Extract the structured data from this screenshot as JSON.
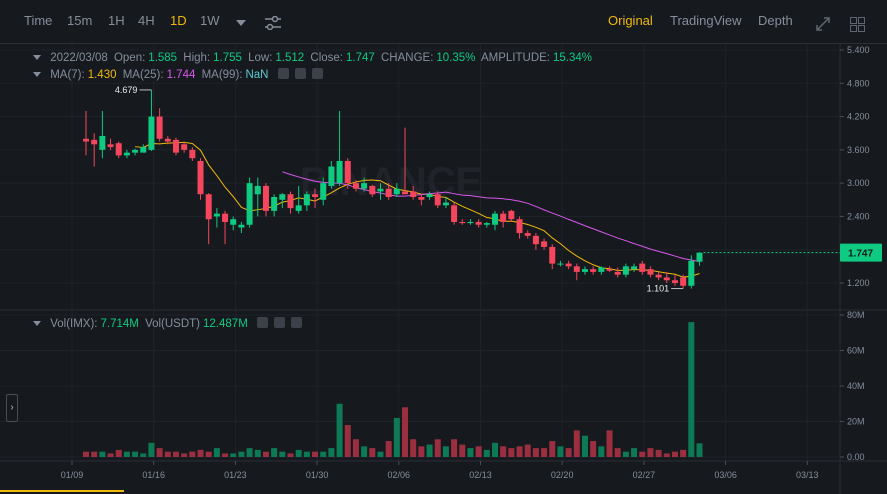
{
  "toolbar": {
    "intervals": [
      "Time",
      "15m",
      "1H",
      "4H",
      "1D",
      "1W"
    ],
    "active_interval": "1D",
    "views": [
      "Original",
      "TradingView",
      "Depth"
    ],
    "active_view": "Original",
    "dropdown_icon": "caret-down-icon",
    "settings_icon": "sliders-icon",
    "expand_icon": "expand-icon",
    "grid_icon": "grid-icon"
  },
  "legend": {
    "date": "2022/03/08",
    "open_label": "Open:",
    "open": "1.585",
    "high_label": "High:",
    "high": "1.755",
    "low_label": "Low:",
    "low": "1.512",
    "close_label": "Close:",
    "close": "1.747",
    "change_label": "CHANGE:",
    "change": "10.35%",
    "amplitude_label": "AMPLITUDE:",
    "amplitude": "15.34%",
    "ma7_label": "MA(7):",
    "ma7": "1.430",
    "ma25_label": "MA(25):",
    "ma25": "1.744",
    "ma99_label": "MA(99):",
    "ma99": "NaN",
    "vol_label": "Vol(IMX):",
    "vol": "7.714M",
    "volusdt_label": "Vol(USDT)",
    "volusdt": "12.487M"
  },
  "colors": {
    "up": "#0ecb81",
    "down": "#f6465d",
    "ma7": "#f0b90b",
    "ma25": "#d957ef",
    "accent": "#f0b90b",
    "background": "#161a1e"
  },
  "chart_data": {
    "type": "candlestick",
    "x_tick_labels": [
      "01/09",
      "01/16",
      "01/23",
      "01/30",
      "02/06",
      "02/13",
      "02/20",
      "02/27",
      "03/06",
      "03/13"
    ],
    "price_axis": {
      "ticks": [
        "5.400",
        "4.800",
        "4.200",
        "3.600",
        "3.000",
        "2.400",
        "1.800",
        "1.200"
      ],
      "range": [
        0.9,
        5.6
      ]
    },
    "volume_axis": {
      "ticks": [
        "80M",
        "60M",
        "40M",
        "20M",
        "0.00"
      ],
      "range": [
        0,
        80
      ]
    },
    "last_price": "1.747",
    "high_marker": "4.679",
    "low_marker": "1.101",
    "candles": [
      {
        "o": 3.8,
        "h": 4.3,
        "l": 3.5,
        "c": 3.75,
        "v": 3
      },
      {
        "o": 3.78,
        "h": 3.9,
        "l": 3.3,
        "c": 3.7,
        "v": 3
      },
      {
        "o": 3.6,
        "h": 4.3,
        "l": 3.45,
        "c": 3.85,
        "v": 3
      },
      {
        "o": 3.7,
        "h": 3.8,
        "l": 3.6,
        "c": 3.65,
        "v": 2
      },
      {
        "o": 3.72,
        "h": 3.75,
        "l": 3.45,
        "c": 3.5,
        "v": 4
      },
      {
        "o": 3.5,
        "h": 3.6,
        "l": 3.45,
        "c": 3.55,
        "v": 3
      },
      {
        "o": 3.55,
        "h": 3.62,
        "l": 3.5,
        "c": 3.6,
        "v": 3
      },
      {
        "o": 3.55,
        "h": 3.7,
        "l": 3.55,
        "c": 3.65,
        "v": 2
      },
      {
        "o": 3.6,
        "h": 4.68,
        "l": 3.58,
        "c": 4.2,
        "v": 8
      },
      {
        "o": 4.2,
        "h": 4.35,
        "l": 3.75,
        "c": 3.8,
        "v": 5
      },
      {
        "o": 3.8,
        "h": 3.85,
        "l": 3.7,
        "c": 3.75,
        "v": 3
      },
      {
        "o": 3.78,
        "h": 3.82,
        "l": 3.5,
        "c": 3.55,
        "v": 3
      },
      {
        "o": 3.7,
        "h": 3.75,
        "l": 3.55,
        "c": 3.6,
        "v": 2
      },
      {
        "o": 3.6,
        "h": 3.65,
        "l": 3.4,
        "c": 3.45,
        "v": 3
      },
      {
        "o": 3.4,
        "h": 3.45,
        "l": 2.7,
        "c": 2.8,
        "v": 4
      },
      {
        "o": 2.8,
        "h": 2.82,
        "l": 1.9,
        "c": 2.35,
        "v": 3
      },
      {
        "o": 2.4,
        "h": 2.55,
        "l": 2.2,
        "c": 2.45,
        "v": 5
      },
      {
        "o": 2.45,
        "h": 2.5,
        "l": 1.9,
        "c": 2.3,
        "v": 2
      },
      {
        "o": 2.25,
        "h": 2.4,
        "l": 2.15,
        "c": 2.35,
        "v": 2
      },
      {
        "o": 2.2,
        "h": 2.3,
        "l": 2.1,
        "c": 2.25,
        "v": 3
      },
      {
        "o": 2.25,
        "h": 3.1,
        "l": 2.2,
        "c": 3.0,
        "v": 5
      },
      {
        "o": 2.8,
        "h": 3.1,
        "l": 2.4,
        "c": 2.95,
        "v": 4
      },
      {
        "o": 2.95,
        "h": 3.0,
        "l": 2.4,
        "c": 2.5,
        "v": 3
      },
      {
        "o": 2.5,
        "h": 2.8,
        "l": 2.4,
        "c": 2.75,
        "v": 5
      },
      {
        "o": 2.7,
        "h": 2.82,
        "l": 2.55,
        "c": 2.8,
        "v": 3
      },
      {
        "o": 2.8,
        "h": 2.85,
        "l": 2.45,
        "c": 2.55,
        "v": 2
      },
      {
        "o": 2.5,
        "h": 2.95,
        "l": 2.45,
        "c": 2.6,
        "v": 4
      },
      {
        "o": 2.6,
        "h": 2.85,
        "l": 2.5,
        "c": 2.8,
        "v": 3
      },
      {
        "o": 2.8,
        "h": 2.9,
        "l": 2.55,
        "c": 2.75,
        "v": 3
      },
      {
        "o": 2.7,
        "h": 3.1,
        "l": 2.6,
        "c": 3.0,
        "v": 3
      },
      {
        "o": 2.95,
        "h": 3.4,
        "l": 2.9,
        "c": 3.3,
        "v": 5
      },
      {
        "o": 3.0,
        "h": 4.3,
        "l": 2.95,
        "c": 3.4,
        "v": 30
      },
      {
        "o": 3.4,
        "h": 3.45,
        "l": 2.9,
        "c": 3.0,
        "v": 18
      },
      {
        "o": 3.0,
        "h": 3.05,
        "l": 2.85,
        "c": 2.9,
        "v": 10
      },
      {
        "o": 2.9,
        "h": 3.1,
        "l": 2.85,
        "c": 3.0,
        "v": 6
      },
      {
        "o": 2.95,
        "h": 2.97,
        "l": 2.75,
        "c": 2.8,
        "v": 5
      },
      {
        "o": 2.85,
        "h": 3.0,
        "l": 2.7,
        "c": 2.9,
        "v": 3
      },
      {
        "o": 2.9,
        "h": 3.0,
        "l": 2.7,
        "c": 2.75,
        "v": 9
      },
      {
        "o": 2.8,
        "h": 3.0,
        "l": 2.75,
        "c": 2.9,
        "v": 22
      },
      {
        "o": 2.85,
        "h": 4.0,
        "l": 2.8,
        "c": 2.8,
        "v": 28
      },
      {
        "o": 2.85,
        "h": 2.95,
        "l": 2.7,
        "c": 2.75,
        "v": 10
      },
      {
        "o": 2.75,
        "h": 2.8,
        "l": 2.6,
        "c": 2.7,
        "v": 6
      },
      {
        "o": 2.75,
        "h": 2.85,
        "l": 2.7,
        "c": 2.8,
        "v": 7
      },
      {
        "o": 2.8,
        "h": 2.85,
        "l": 2.55,
        "c": 2.6,
        "v": 10
      },
      {
        "o": 2.6,
        "h": 2.75,
        "l": 2.55,
        "c": 2.65,
        "v": 6
      },
      {
        "o": 2.6,
        "h": 2.65,
        "l": 2.25,
        "c": 2.3,
        "v": 10
      },
      {
        "o": 2.3,
        "h": 2.35,
        "l": 2.25,
        "c": 2.28,
        "v": 7
      },
      {
        "o": 2.28,
        "h": 2.35,
        "l": 2.25,
        "c": 2.3,
        "v": 5
      },
      {
        "o": 2.3,
        "h": 2.35,
        "l": 2.2,
        "c": 2.25,
        "v": 6
      },
      {
        "o": 2.25,
        "h": 2.3,
        "l": 2.2,
        "c": 2.28,
        "v": 4
      },
      {
        "o": 2.25,
        "h": 2.5,
        "l": 2.15,
        "c": 2.45,
        "v": 8
      },
      {
        "o": 2.45,
        "h": 2.5,
        "l": 2.2,
        "c": 2.3,
        "v": 6
      },
      {
        "o": 2.5,
        "h": 2.52,
        "l": 2.3,
        "c": 2.35,
        "v": 5
      },
      {
        "o": 2.35,
        "h": 2.4,
        "l": 2.0,
        "c": 2.1,
        "v": 6
      },
      {
        "o": 2.1,
        "h": 2.15,
        "l": 2.0,
        "c": 2.05,
        "v": 7
      },
      {
        "o": 2.05,
        "h": 2.1,
        "l": 1.8,
        "c": 1.9,
        "v": 5
      },
      {
        "o": 1.95,
        "h": 2.0,
        "l": 1.8,
        "c": 1.85,
        "v": 5
      },
      {
        "o": 1.85,
        "h": 1.9,
        "l": 1.45,
        "c": 1.55,
        "v": 9
      },
      {
        "o": 1.55,
        "h": 1.6,
        "l": 1.5,
        "c": 1.55,
        "v": 6
      },
      {
        "o": 1.55,
        "h": 1.6,
        "l": 1.45,
        "c": 1.5,
        "v": 5
      },
      {
        "o": 1.5,
        "h": 1.55,
        "l": 1.25,
        "c": 1.4,
        "v": 15
      },
      {
        "o": 1.4,
        "h": 1.5,
        "l": 1.35,
        "c": 1.45,
        "v": 12
      },
      {
        "o": 1.45,
        "h": 1.5,
        "l": 1.35,
        "c": 1.4,
        "v": 9
      },
      {
        "o": 1.4,
        "h": 1.5,
        "l": 1.35,
        "c": 1.48,
        "v": 6
      },
      {
        "o": 1.45,
        "h": 1.5,
        "l": 1.4,
        "c": 1.42,
        "v": 15
      },
      {
        "o": 1.4,
        "h": 1.48,
        "l": 1.3,
        "c": 1.35,
        "v": 5
      },
      {
        "o": 1.35,
        "h": 1.55,
        "l": 1.3,
        "c": 1.5,
        "v": 3
      },
      {
        "o": 1.45,
        "h": 1.55,
        "l": 1.4,
        "c": 1.5,
        "v": 5
      },
      {
        "o": 1.55,
        "h": 1.6,
        "l": 1.35,
        "c": 1.4,
        "v": 3
      },
      {
        "o": 1.45,
        "h": 1.5,
        "l": 1.3,
        "c": 1.35,
        "v": 5
      },
      {
        "o": 1.35,
        "h": 1.4,
        "l": 1.25,
        "c": 1.3,
        "v": 4
      },
      {
        "o": 1.3,
        "h": 1.4,
        "l": 1.2,
        "c": 1.25,
        "v": 2
      },
      {
        "o": 1.25,
        "h": 1.35,
        "l": 1.15,
        "c": 1.2,
        "v": 3
      },
      {
        "o": 1.3,
        "h": 1.35,
        "l": 1.1,
        "c": 1.15,
        "v": 4
      },
      {
        "o": 1.15,
        "h": 1.7,
        "l": 1.1,
        "c": 1.6,
        "v": 76
      },
      {
        "o": 1.585,
        "h": 1.755,
        "l": 1.512,
        "c": 1.747,
        "v": 7.7
      }
    ]
  }
}
